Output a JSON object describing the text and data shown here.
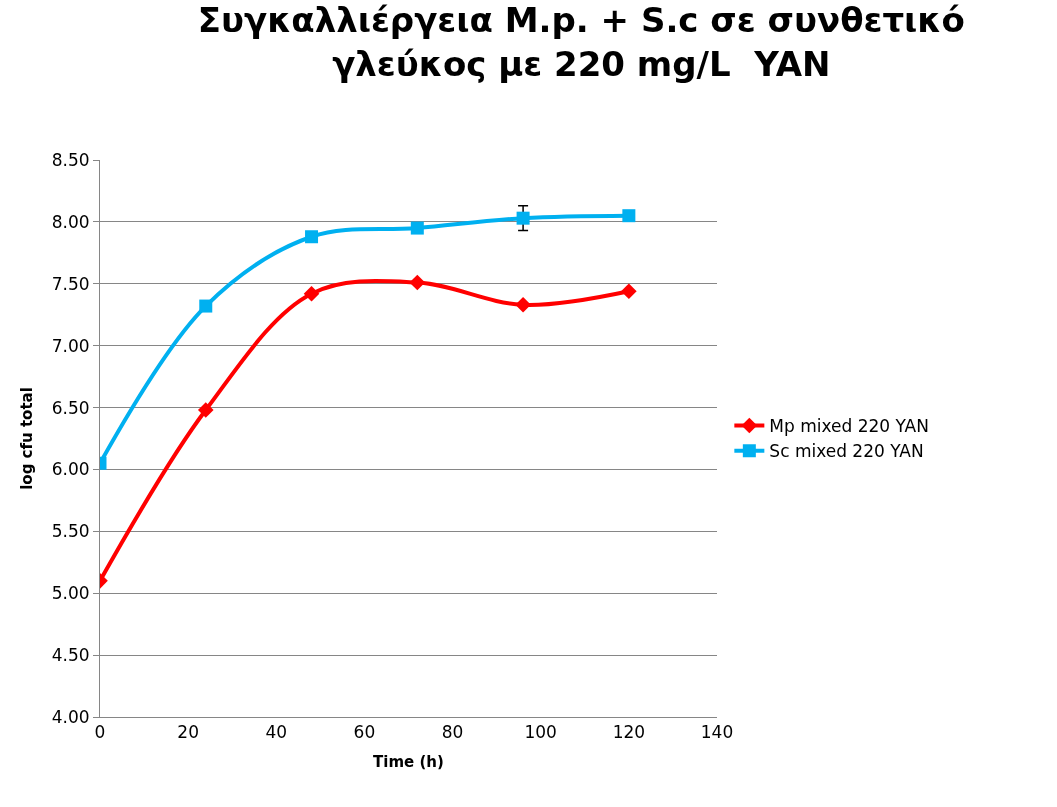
{
  "chart_data": {
    "type": "line",
    "title": "Συγκαλλιέργεια M.p. + S.c σε συνθετικό γλεύκος με 220 mg/L  YAN",
    "xlabel": "Time (h)",
    "ylabel": "log cfu total",
    "x": [
      0,
      24,
      48,
      72,
      96,
      120
    ],
    "series": [
      {
        "name": "Mp mixed 220 YAN",
        "color": "#ff0000",
        "marker": "diamond",
        "values": [
          5.1,
          6.48,
          7.42,
          7.51,
          7.33,
          7.44
        ]
      },
      {
        "name": "Sc mixed 220 YAN",
        "color": "#00b0f0",
        "marker": "square",
        "values": [
          6.05,
          7.32,
          7.88,
          7.95,
          8.03,
          8.05
        ],
        "errors": [
          null,
          null,
          null,
          null,
          0.1,
          null
        ]
      }
    ],
    "xlim": [
      0,
      140
    ],
    "xticks": [
      0,
      20,
      40,
      60,
      80,
      100,
      120,
      140
    ],
    "ylim": [
      4.0,
      8.5
    ],
    "yticks": [
      {
        "value": 4.0,
        "label": "4.00"
      },
      {
        "value": 4.5,
        "label": "4.50"
      },
      {
        "value": 5.0,
        "label": "5.00"
      },
      {
        "value": 5.5,
        "label": "5.50"
      },
      {
        "value": 6.0,
        "label": "6.00"
      },
      {
        "value": 6.5,
        "label": "6.50"
      },
      {
        "value": 7.0,
        "label": "7.00"
      },
      {
        "value": 7.5,
        "label": "7.50"
      },
      {
        "value": 8.0,
        "label": "8.00"
      },
      {
        "value": 8.5,
        "label": "8.50"
      }
    ],
    "grid": "y",
    "legend": "right"
  }
}
